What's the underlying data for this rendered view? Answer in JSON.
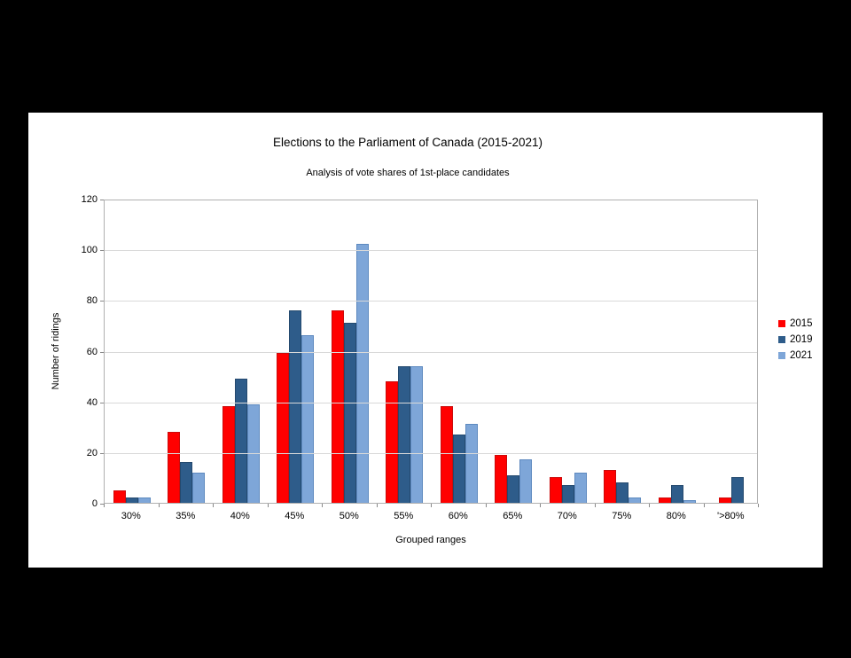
{
  "chart_data": {
    "type": "bar",
    "title": "Elections to the Parliament of Canada (2015-2021)",
    "subtitle": "Analysis of vote shares of 1st-place candidates",
    "xlabel": "Grouped ranges",
    "ylabel": "Number of ridings",
    "categories": [
      "30%",
      "35%",
      "40%",
      "45%",
      "50%",
      "55%",
      "60%",
      "65%",
      "70%",
      "75%",
      "80%",
      "'>80%"
    ],
    "series": [
      {
        "name": "2015",
        "color": "#ff0000",
        "border": "#cc0a0a",
        "values": [
          5,
          28,
          38,
          59,
          76,
          48,
          38,
          19,
          10,
          13,
          2,
          2
        ]
      },
      {
        "name": "2019",
        "color": "#2e5c8a",
        "border": "#24496e",
        "values": [
          2,
          16,
          49,
          76,
          71,
          54,
          27,
          11,
          7,
          8,
          7,
          10
        ]
      },
      {
        "name": "2021",
        "color": "#7ea6d8",
        "border": "#5d89bf",
        "values": [
          2,
          12,
          39,
          66,
          102,
          54,
          31,
          17,
          12,
          2,
          1,
          0
        ]
      }
    ],
    "ylim": [
      0,
      120
    ],
    "ytick_interval": 20,
    "grid": true,
    "legend_position": "right",
    "background": "#ffffff",
    "surround": "#000000"
  }
}
